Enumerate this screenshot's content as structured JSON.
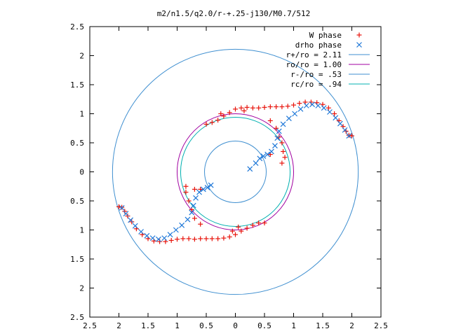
{
  "chart_data": {
    "type": "scatter",
    "title": "m2/n1.5/q2.0/r-+.25-j130/M0.7/512",
    "xlim": [
      -2.5,
      2.5
    ],
    "ylim": [
      -2.5,
      2.5
    ],
    "xticks": [
      "2.5",
      "2",
      "1.5",
      "1",
      "0.5",
      "0",
      "0.5",
      "1",
      "1.5",
      "2",
      "2.5"
    ],
    "yticks": [
      "2.5",
      "2",
      "1.5",
      "1",
      "0.5",
      "0",
      "0.5",
      "1",
      "1.5",
      "2",
      "2.5"
    ],
    "tick_values": [
      -2.5,
      -2,
      -1.5,
      -1,
      -0.5,
      0,
      0.5,
      1,
      1.5,
      2,
      2.5
    ],
    "grid": false,
    "legend_position": "top-right",
    "circles": [
      {
        "label": "r+/ro = 2.11",
        "radius": 2.11,
        "color": "#3f8fd0"
      },
      {
        "label": "ro/ro = 1.00",
        "radius": 1.0,
        "color": "#a000a0"
      },
      {
        "label": "r-/ro = .53",
        "radius": 0.53,
        "color": "#3f8fd0"
      },
      {
        "label": "rc/ro = .94",
        "radius": 0.94,
        "color": "#00b0b0"
      }
    ],
    "series": [
      {
        "name": "W phase",
        "marker": "+",
        "color": "#e8140c",
        "points": [
          [
            2.0,
            0.62
          ],
          [
            1.95,
            0.63
          ],
          [
            1.9,
            0.7
          ],
          [
            1.85,
            0.78
          ],
          [
            1.78,
            0.88
          ],
          [
            1.7,
            1.0
          ],
          [
            1.6,
            1.1
          ],
          [
            1.5,
            1.16
          ],
          [
            1.4,
            1.19
          ],
          [
            1.3,
            1.2
          ],
          [
            1.2,
            1.2
          ],
          [
            1.1,
            1.18
          ],
          [
            1.0,
            1.15
          ],
          [
            0.9,
            1.13
          ],
          [
            0.8,
            1.12
          ],
          [
            0.7,
            1.12
          ],
          [
            0.6,
            1.12
          ],
          [
            0.5,
            1.11
          ],
          [
            0.4,
            1.1
          ],
          [
            0.3,
            1.1
          ],
          [
            0.2,
            1.11
          ],
          [
            0.1,
            1.1
          ],
          [
            0.0,
            1.08
          ],
          [
            -0.1,
            1.02
          ],
          [
            -0.2,
            0.96
          ],
          [
            -0.3,
            0.89
          ],
          [
            -0.4,
            0.85
          ],
          [
            -0.5,
            0.82
          ],
          [
            -0.25,
            1.0
          ],
          [
            0.15,
            1.05
          ],
          [
            0.6,
            0.88
          ],
          [
            0.7,
            0.75
          ],
          [
            0.75,
            0.6
          ],
          [
            0.8,
            0.5
          ],
          [
            0.82,
            0.35
          ],
          [
            0.85,
            0.25
          ],
          [
            0.8,
            0.15
          ],
          [
            0.6,
            0.3
          ],
          [
            -2.0,
            -0.6
          ],
          [
            -1.95,
            -0.61
          ],
          [
            -1.9,
            -0.68
          ],
          [
            -1.85,
            -0.76
          ],
          [
            -1.78,
            -0.86
          ],
          [
            -1.7,
            -0.98
          ],
          [
            -1.6,
            -1.08
          ],
          [
            -1.5,
            -1.15
          ],
          [
            -1.4,
            -1.19
          ],
          [
            -1.3,
            -1.2
          ],
          [
            -1.2,
            -1.2
          ],
          [
            -1.1,
            -1.18
          ],
          [
            -1.0,
            -1.16
          ],
          [
            -0.9,
            -1.15
          ],
          [
            -0.8,
            -1.15
          ],
          [
            -0.7,
            -1.16
          ],
          [
            -0.6,
            -1.15
          ],
          [
            -0.5,
            -1.15
          ],
          [
            -0.4,
            -1.15
          ],
          [
            -0.3,
            -1.15
          ],
          [
            -0.2,
            -1.14
          ],
          [
            -0.1,
            -1.12
          ],
          [
            0.0,
            -1.08
          ],
          [
            0.1,
            -1.02
          ],
          [
            0.2,
            -0.97
          ],
          [
            0.3,
            -0.92
          ],
          [
            0.4,
            -0.88
          ],
          [
            0.5,
            -0.88
          ],
          [
            -0.05,
            -1.02
          ],
          [
            0.05,
            -0.95
          ],
          [
            -0.6,
            -0.9
          ],
          [
            -0.7,
            -0.8
          ],
          [
            -0.75,
            -0.65
          ],
          [
            -0.8,
            -0.5
          ],
          [
            -0.85,
            -0.35
          ],
          [
            -0.85,
            -0.25
          ],
          [
            -0.7,
            -0.3
          ],
          [
            -0.6,
            -0.3
          ]
        ]
      },
      {
        "name": "drho phase",
        "marker": "x",
        "color": "#1f78d8",
        "points": [
          [
            1.95,
            0.62
          ],
          [
            1.88,
            0.72
          ],
          [
            1.8,
            0.83
          ],
          [
            1.72,
            0.93
          ],
          [
            1.62,
            1.03
          ],
          [
            1.52,
            1.1
          ],
          [
            1.42,
            1.14
          ],
          [
            1.32,
            1.16
          ],
          [
            1.22,
            1.14
          ],
          [
            1.12,
            1.08
          ],
          [
            1.02,
            1.0
          ],
          [
            0.92,
            0.92
          ],
          [
            0.82,
            0.82
          ],
          [
            0.75,
            0.7
          ],
          [
            0.72,
            0.58
          ],
          [
            0.68,
            0.45
          ],
          [
            0.62,
            0.35
          ],
          [
            0.55,
            0.3
          ],
          [
            0.48,
            0.27
          ],
          [
            0.42,
            0.23
          ],
          [
            0.25,
            0.05
          ],
          [
            0.35,
            0.15
          ],
          [
            -1.95,
            -0.62
          ],
          [
            -1.88,
            -0.72
          ],
          [
            -1.8,
            -0.83
          ],
          [
            -1.72,
            -0.93
          ],
          [
            -1.62,
            -1.03
          ],
          [
            -1.52,
            -1.1
          ],
          [
            -1.42,
            -1.14
          ],
          [
            -1.32,
            -1.16
          ],
          [
            -1.22,
            -1.14
          ],
          [
            -1.12,
            -1.08
          ],
          [
            -1.02,
            -1.0
          ],
          [
            -0.92,
            -0.92
          ],
          [
            -0.82,
            -0.82
          ],
          [
            -0.75,
            -0.7
          ],
          [
            -0.72,
            -0.58
          ],
          [
            -0.68,
            -0.45
          ],
          [
            -0.62,
            -0.35
          ],
          [
            -0.55,
            -0.3
          ],
          [
            -0.48,
            -0.27
          ],
          [
            -0.42,
            -0.23
          ]
        ]
      }
    ]
  }
}
